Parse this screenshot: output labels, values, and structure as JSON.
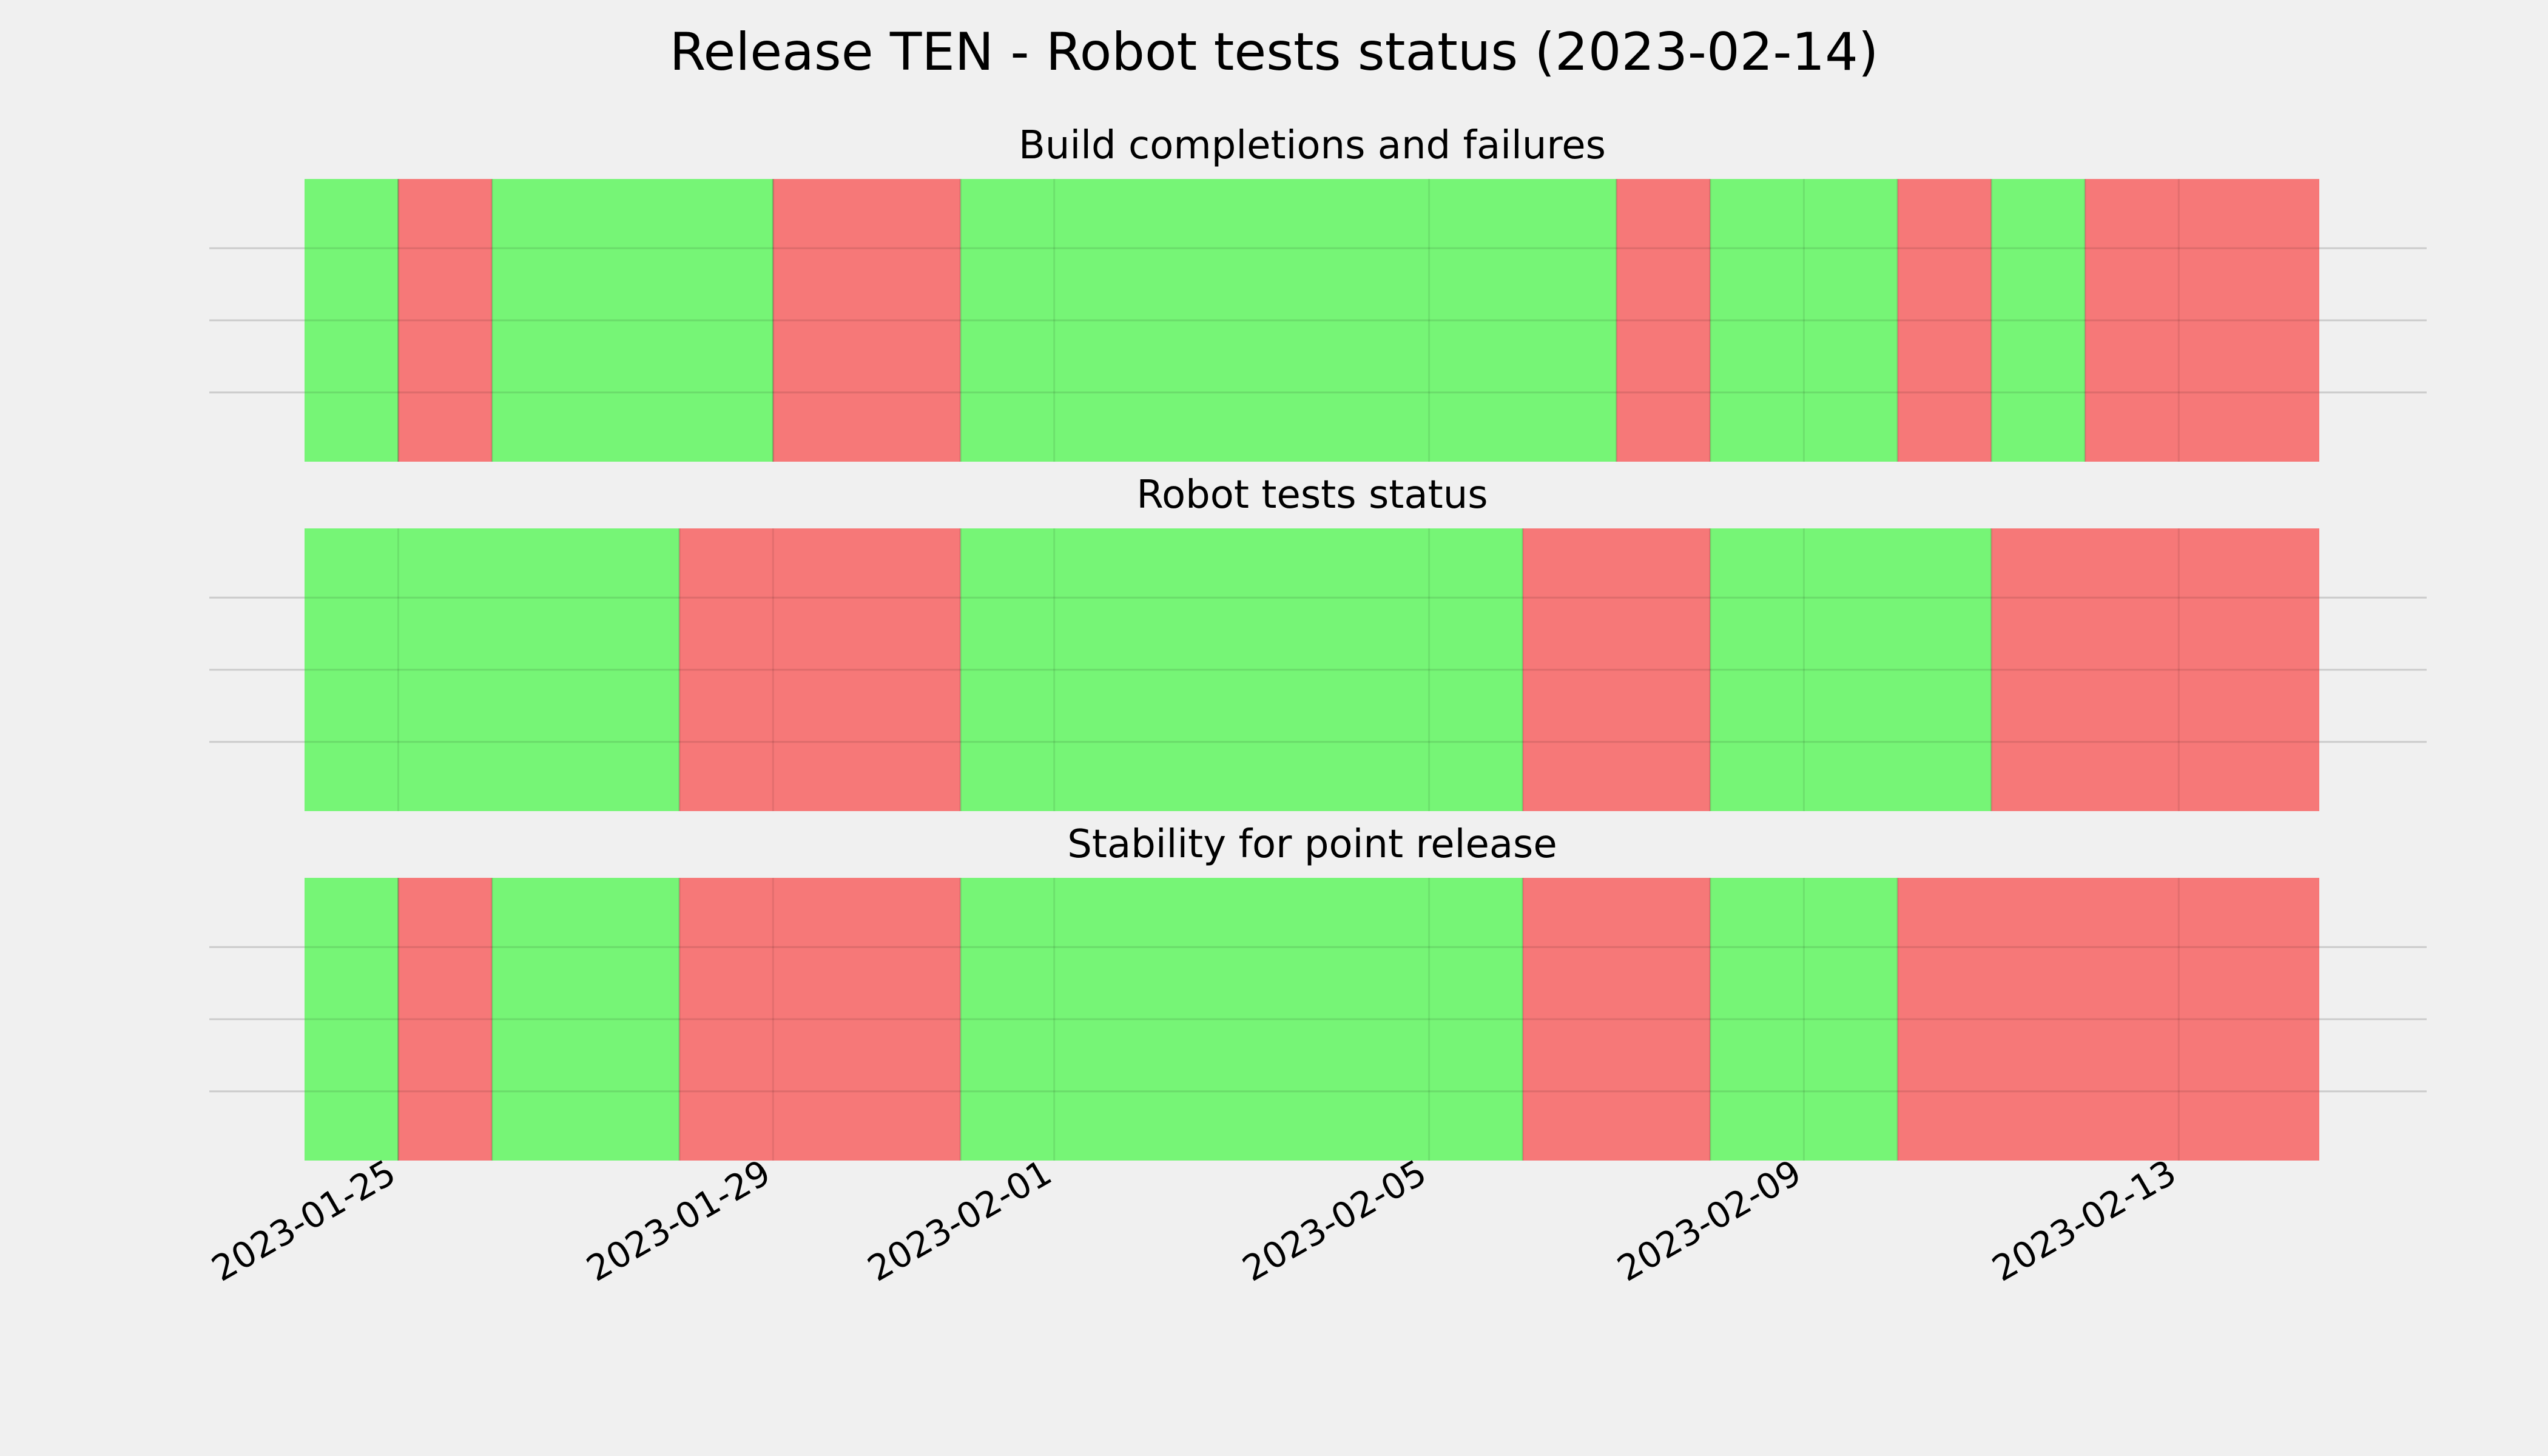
{
  "chart_data": {
    "type": "timeline",
    "title": "Release TEN - Robot tests status (2023-02-14)",
    "x_range": [
      "2023-01-24T00:00",
      "2023-02-15T12:00"
    ],
    "x_ticks": [
      "2023-01-25",
      "2023-01-29",
      "2023-02-01",
      "2023-02-05",
      "2023-02-09",
      "2023-02-13"
    ],
    "colors": {
      "pass": "#76f576",
      "fail": "#f67878",
      "background": "#f0f0f0",
      "grid": "#cbcbcb"
    },
    "grid": true,
    "panels": [
      {
        "title": "Build completions and failures",
        "segments": [
          {
            "start": "2023-01-24",
            "end": "2023-01-25",
            "status": "pass"
          },
          {
            "start": "2023-01-25",
            "end": "2023-01-26",
            "status": "fail"
          },
          {
            "start": "2023-01-26",
            "end": "2023-01-29",
            "status": "pass"
          },
          {
            "start": "2023-01-29",
            "end": "2023-01-31",
            "status": "fail"
          },
          {
            "start": "2023-01-31",
            "end": "2023-02-07",
            "status": "pass"
          },
          {
            "start": "2023-02-07",
            "end": "2023-02-08",
            "status": "fail"
          },
          {
            "start": "2023-02-08",
            "end": "2023-02-10",
            "status": "pass"
          },
          {
            "start": "2023-02-10",
            "end": "2023-02-11",
            "status": "fail"
          },
          {
            "start": "2023-02-11",
            "end": "2023-02-12",
            "status": "pass"
          },
          {
            "start": "2023-02-12",
            "end": "2023-02-14T12:00",
            "status": "fail"
          }
        ]
      },
      {
        "title": "Robot tests status",
        "segments": [
          {
            "start": "2023-01-24",
            "end": "2023-01-28",
            "status": "pass"
          },
          {
            "start": "2023-01-28",
            "end": "2023-01-31",
            "status": "fail"
          },
          {
            "start": "2023-01-31",
            "end": "2023-02-06",
            "status": "pass"
          },
          {
            "start": "2023-02-06",
            "end": "2023-02-08",
            "status": "fail"
          },
          {
            "start": "2023-02-08",
            "end": "2023-02-11",
            "status": "pass"
          },
          {
            "start": "2023-02-11",
            "end": "2023-02-14T12:00",
            "status": "fail"
          }
        ]
      },
      {
        "title": "Stability for point release",
        "segments": [
          {
            "start": "2023-01-24",
            "end": "2023-01-25",
            "status": "pass"
          },
          {
            "start": "2023-01-25",
            "end": "2023-01-26",
            "status": "fail"
          },
          {
            "start": "2023-01-26",
            "end": "2023-01-28",
            "status": "pass"
          },
          {
            "start": "2023-01-28",
            "end": "2023-01-31",
            "status": "fail"
          },
          {
            "start": "2023-01-31",
            "end": "2023-02-06",
            "status": "pass"
          },
          {
            "start": "2023-02-06",
            "end": "2023-02-08",
            "status": "fail"
          },
          {
            "start": "2023-02-08",
            "end": "2023-02-10",
            "status": "pass"
          },
          {
            "start": "2023-02-10",
            "end": "2023-02-14T12:00",
            "status": "fail"
          }
        ]
      }
    ]
  }
}
